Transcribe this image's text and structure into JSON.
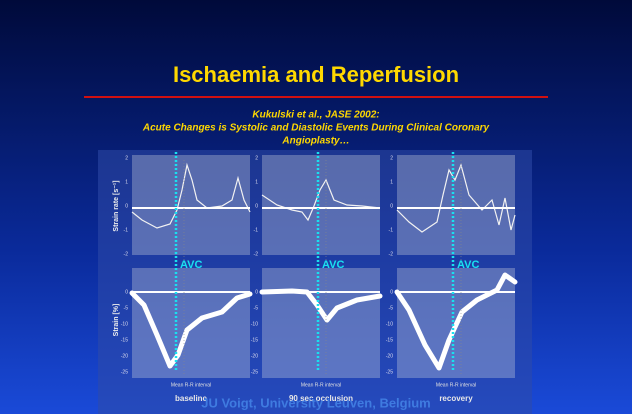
{
  "title": "Ischaemia and Reperfusion",
  "citation": [
    "Kukulski et al., JASE 2002:",
    "Acute Changes is Systolic and Diastolic Events During Clinical Coronary",
    "Angioplasty…"
  ],
  "figure": {
    "y_label_top": "Strain rate [s⁻¹]",
    "y_label_bottom": "Strain [%]",
    "top_ticks": [
      "2",
      "1",
      "0",
      "-1",
      "-2"
    ],
    "bottom_ticks": [
      "0",
      "-5",
      "-10",
      "-15",
      "-20",
      "-25"
    ],
    "panels": [
      {
        "marker": "AVC",
        "x_label": "Mean R-R interval",
        "caption": "baseline"
      },
      {
        "marker": "AVC",
        "x_label": "Mean R-R interval",
        "caption": "90 sec occlusion"
      },
      {
        "marker": "AVC",
        "x_label": "Mean R-R interval",
        "caption": "recovery"
      }
    ]
  },
  "footer": "JU Voigt, University Leuven, Belgium"
}
